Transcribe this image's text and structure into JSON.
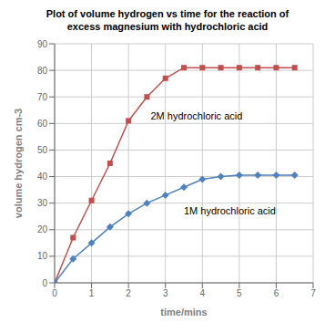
{
  "chart_data": {
    "type": "line",
    "title": "Plot of volume hydrogen vs time for the reaction of\nexcess magnesium with hydrochloric acid",
    "xlabel": "time/mins",
    "ylabel": "volume hydrogen cm-3",
    "x": [
      0,
      0.5,
      1.0,
      1.5,
      2.0,
      2.5,
      3.0,
      3.5,
      4.0,
      4.5,
      5.0,
      5.5,
      6.0,
      6.5
    ],
    "series": [
      {
        "color": "#c0504d",
        "marker": "square",
        "values": [
          0,
          17,
          31,
          45,
          61,
          70,
          77,
          81,
          81,
          81,
          81,
          81,
          81,
          81
        ]
      },
      {
        "color": "#4f81bd",
        "marker": "diamond",
        "values": [
          0,
          9,
          15,
          21,
          26,
          30,
          33,
          36,
          39,
          40,
          40.5,
          40.5,
          40.5,
          40.5
        ]
      }
    ],
    "xlim": [
      0,
      7
    ],
    "ylim": [
      0,
      90
    ],
    "xticks": [
      0,
      1,
      2,
      3,
      4,
      5,
      6,
      7
    ],
    "yticks": [
      0,
      10,
      20,
      30,
      40,
      50,
      60,
      70,
      80,
      90
    ],
    "grid": true,
    "annotations": [
      {
        "text": "2M hydrochloric acid",
        "x": 2.6,
        "y": 63
      },
      {
        "text": "1M hydrochloric acid",
        "x": 3.5,
        "y": 27
      }
    ]
  }
}
